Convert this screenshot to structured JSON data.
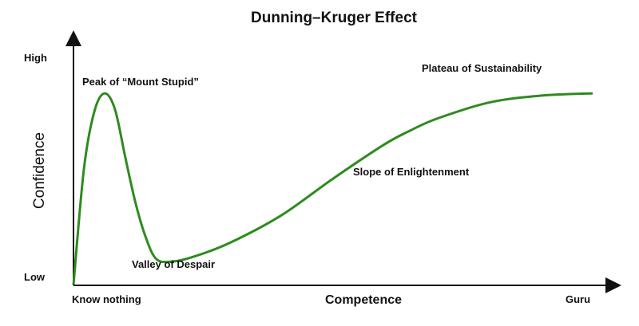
{
  "chart_data": {
    "type": "line",
    "title": "Dunning–Kruger Effect",
    "xlabel": "Competence",
    "ylabel": "Confidence",
    "x_tick_labels": {
      "left": "Know nothing",
      "right": "Guru"
    },
    "y_tick_labels": {
      "bottom": "Low",
      "top": "High"
    },
    "xlim": [
      0,
      100
    ],
    "ylim": [
      0,
      100
    ],
    "series": [
      {
        "color": "#2e8b1f",
        "points": [
          [
            0,
            0
          ],
          [
            2,
            50
          ],
          [
            4,
            75
          ],
          [
            6,
            83
          ],
          [
            8,
            76
          ],
          [
            10,
            55
          ],
          [
            12,
            35
          ],
          [
            14,
            20
          ],
          [
            16,
            11
          ],
          [
            19,
            10
          ],
          [
            23,
            12
          ],
          [
            30,
            18
          ],
          [
            40,
            30
          ],
          [
            50,
            46
          ],
          [
            60,
            61
          ],
          [
            65,
            67
          ],
          [
            70,
            72
          ],
          [
            80,
            79
          ],
          [
            90,
            82
          ],
          [
            100,
            83
          ]
        ]
      }
    ],
    "annotations": [
      {
        "text": "Peak of “Mount Stupid”",
        "x": 6,
        "y": 83
      },
      {
        "text": "Valley of Despair",
        "x": 19,
        "y": 10
      },
      {
        "text": "Slope of Enlightenment",
        "x": 55,
        "y": 54
      },
      {
        "text": "Plateau of Sustainability",
        "x": 90,
        "y": 82
      }
    ],
    "grid": false
  }
}
